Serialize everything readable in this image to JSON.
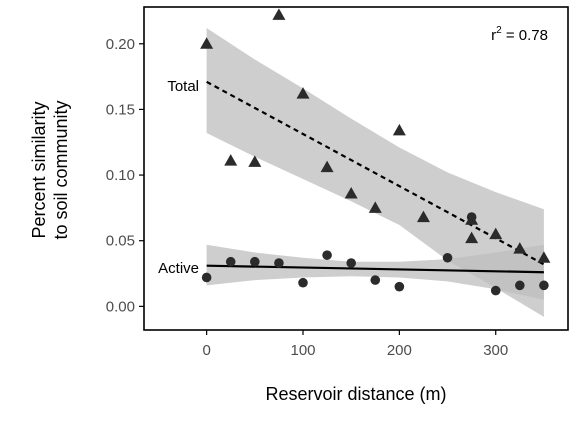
{
  "chart_data": {
    "type": "scatter",
    "xlabel": "Reservoir distance (m)",
    "ylabel": [
      "Percent similarity",
      "to soil community"
    ],
    "xlim": [
      -65,
      375
    ],
    "ylim": [
      -0.018,
      0.228
    ],
    "xticks": [
      0,
      100,
      200,
      300
    ],
    "yticks": [
      0.0,
      0.05,
      0.1,
      0.15,
      0.2
    ],
    "ytick_labels": [
      "0.00",
      "0.05",
      "0.10",
      "0.15",
      "0.20"
    ],
    "grid": false,
    "annotation": {
      "prefix": "r",
      "superscript": "2",
      "suffix": " = 0.78"
    },
    "colors": {
      "points": "#2b2b2b",
      "band": "#bdbdbd",
      "line": "#000000",
      "axis": "#000000"
    },
    "series": [
      {
        "name": "Total",
        "marker": "triangle",
        "fit_style": "dashed",
        "x": [
          0,
          25,
          50,
          75,
          100,
          125,
          150,
          175,
          200,
          225,
          275,
          275,
          300,
          325,
          350
        ],
        "y": [
          0.2,
          0.111,
          0.11,
          0.222,
          0.162,
          0.106,
          0.086,
          0.075,
          0.134,
          0.068,
          0.052,
          0.066,
          0.055,
          0.044,
          0.037
        ],
        "fit": {
          "x": [
            0,
            350
          ],
          "y": [
            0.171,
            0.032
          ]
        },
        "band": {
          "x": [
            0,
            50,
            100,
            150,
            200,
            250,
            300,
            350
          ],
          "upper": [
            0.212,
            0.188,
            0.166,
            0.143,
            0.121,
            0.102,
            0.087,
            0.074
          ],
          "lower": [
            0.132,
            0.114,
            0.097,
            0.08,
            0.062,
            0.035,
            0.014,
            -0.008
          ]
        }
      },
      {
        "name": "Active",
        "marker": "circle",
        "fit_style": "solid",
        "x": [
          0,
          25,
          50,
          75,
          100,
          125,
          150,
          175,
          200,
          250,
          275,
          300,
          325,
          350
        ],
        "y": [
          0.022,
          0.034,
          0.034,
          0.033,
          0.018,
          0.039,
          0.033,
          0.02,
          0.015,
          0.037,
          0.068,
          0.012,
          0.016,
          0.016
        ],
        "fit": {
          "x": [
            0,
            350
          ],
          "y": [
            0.031,
            0.026
          ]
        },
        "band": {
          "x": [
            0,
            50,
            100,
            150,
            200,
            250,
            300,
            350
          ],
          "upper": [
            0.047,
            0.041,
            0.037,
            0.034,
            0.034,
            0.036,
            0.041,
            0.047
          ],
          "lower": [
            0.016,
            0.02,
            0.022,
            0.023,
            0.022,
            0.019,
            0.013,
            0.005
          ]
        }
      }
    ]
  }
}
